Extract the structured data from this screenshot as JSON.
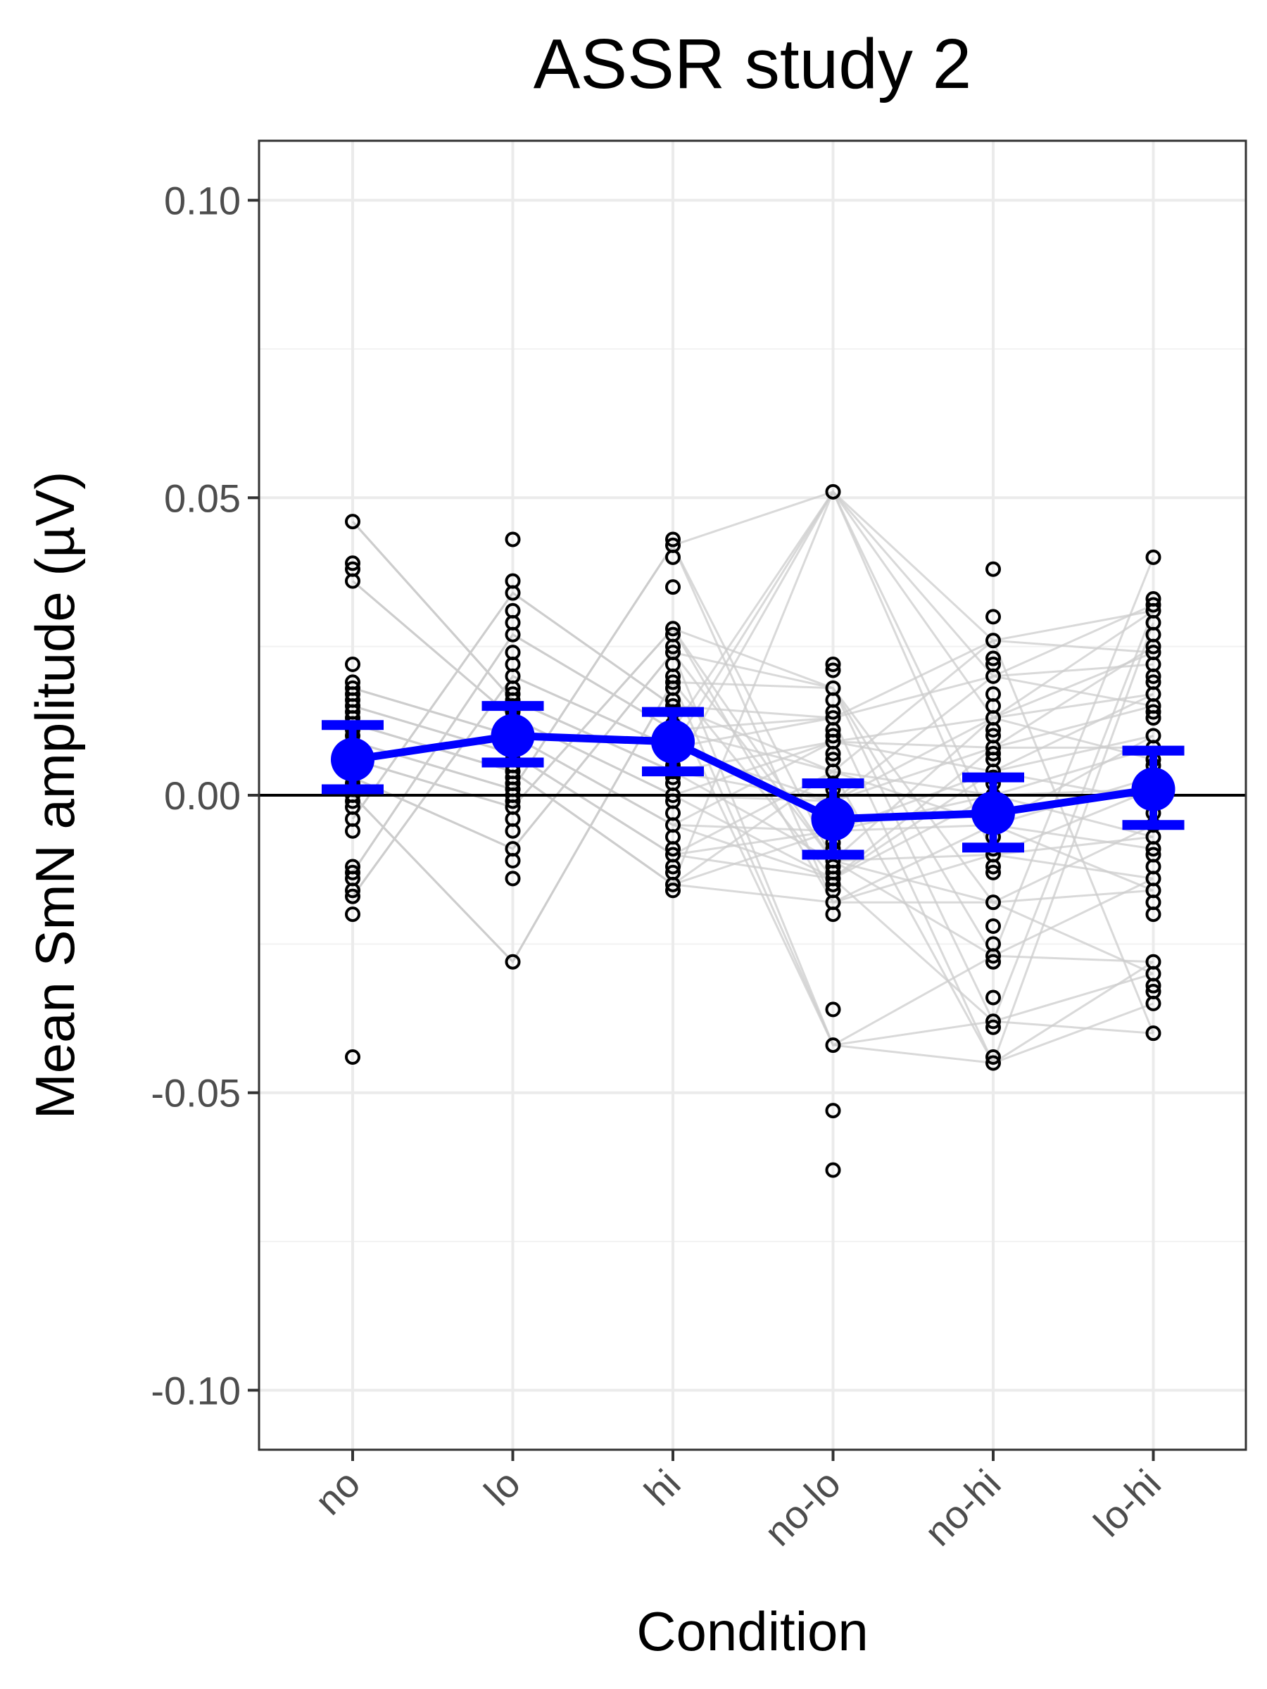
{
  "chart_data": {
    "type": "line",
    "title": "ASSR study 2",
    "xlabel": "Condition",
    "ylabel": "Mean SmN amplitude (µV)",
    "categories": [
      "no",
      "lo",
      "hi",
      "no-lo",
      "no-hi",
      "lo-hi"
    ],
    "ylim": [
      -0.11,
      0.11
    ],
    "yticks": [
      "0.10",
      "0.05",
      "0.00",
      "-0.05",
      "-0.10"
    ],
    "ytick_values": [
      0.1,
      0.05,
      0.0,
      -0.05,
      -0.1
    ],
    "grid": true,
    "reference_line": 0,
    "series": [
      {
        "name": "",
        "kind": "mean",
        "color": "#0000ff",
        "values": [
          0.006,
          0.01,
          0.009,
          -0.004,
          -0.003,
          0.001
        ],
        "error_low": [
          0.001,
          0.0055,
          0.004,
          -0.01,
          -0.0088,
          -0.005
        ],
        "error_high": [
          0.0118,
          0.015,
          0.014,
          0.002,
          0.003,
          0.0075
        ]
      }
    ],
    "individual_points": [
      {
        "category": "no",
        "values": [
          0.046,
          0.039,
          0.038,
          0.036,
          0.022,
          0.019,
          0.018,
          0.017,
          0.016,
          0.015,
          0.014,
          0.013,
          0.012,
          0.011,
          0.01,
          0.009,
          0.008,
          0.007,
          0.006,
          0.005,
          0.004,
          0.003,
          0.002,
          0.001,
          0.0,
          -0.001,
          -0.002,
          -0.004,
          -0.006,
          -0.012,
          -0.013,
          -0.014,
          -0.016,
          -0.017,
          -0.02,
          -0.044
        ]
      },
      {
        "category": "lo",
        "values": [
          0.043,
          0.036,
          0.034,
          0.031,
          0.029,
          0.027,
          0.024,
          0.022,
          0.02,
          0.018,
          0.017,
          0.016,
          0.015,
          0.014,
          0.013,
          0.012,
          0.011,
          0.01,
          0.009,
          0.008,
          0.007,
          0.006,
          0.005,
          0.004,
          0.003,
          0.002,
          0.001,
          0.0,
          -0.001,
          -0.002,
          -0.004,
          -0.006,
          -0.009,
          -0.011,
          -0.014,
          -0.028
        ]
      },
      {
        "category": "hi",
        "values": [
          0.043,
          0.042,
          0.04,
          0.035,
          0.028,
          0.027,
          0.025,
          0.024,
          0.022,
          0.02,
          0.019,
          0.018,
          0.016,
          0.015,
          0.014,
          0.012,
          0.011,
          0.01,
          0.009,
          0.008,
          0.006,
          0.005,
          0.004,
          0.003,
          0.002,
          0.0,
          -0.001,
          -0.003,
          -0.005,
          -0.007,
          -0.009,
          -0.01,
          -0.012,
          -0.013,
          -0.015,
          -0.016
        ]
      },
      {
        "category": "no-lo",
        "values": [
          0.051,
          0.022,
          0.021,
          0.018,
          0.016,
          0.014,
          0.013,
          0.011,
          0.01,
          0.009,
          0.007,
          0.006,
          0.004,
          0.002,
          0.001,
          -0.001,
          -0.003,
          -0.004,
          -0.006,
          -0.008,
          -0.009,
          -0.011,
          -0.012,
          -0.013,
          -0.014,
          -0.015,
          -0.016,
          -0.018,
          -0.02,
          -0.036,
          -0.042,
          -0.053,
          -0.063
        ]
      },
      {
        "category": "no-hi",
        "values": [
          0.038,
          0.03,
          0.026,
          0.023,
          0.022,
          0.02,
          0.017,
          0.015,
          0.013,
          0.011,
          0.01,
          0.008,
          0.007,
          0.006,
          0.004,
          0.003,
          0.002,
          0.0,
          -0.001,
          -0.003,
          -0.005,
          -0.007,
          -0.009,
          -0.01,
          -0.012,
          -0.013,
          -0.018,
          -0.022,
          -0.025,
          -0.027,
          -0.028,
          -0.034,
          -0.038,
          -0.039,
          -0.044,
          -0.045
        ]
      },
      {
        "category": "lo-hi",
        "values": [
          0.04,
          0.033,
          0.032,
          0.031,
          0.029,
          0.027,
          0.025,
          0.024,
          0.022,
          0.02,
          0.019,
          0.017,
          0.015,
          0.014,
          0.013,
          0.01,
          0.008,
          0.006,
          0.005,
          0.003,
          0.001,
          -0.001,
          -0.003,
          -0.005,
          -0.007,
          -0.009,
          -0.01,
          -0.012,
          -0.014,
          -0.016,
          -0.018,
          -0.02,
          -0.028,
          -0.03,
          -0.032,
          -0.033,
          -0.035,
          -0.04
        ]
      }
    ]
  }
}
